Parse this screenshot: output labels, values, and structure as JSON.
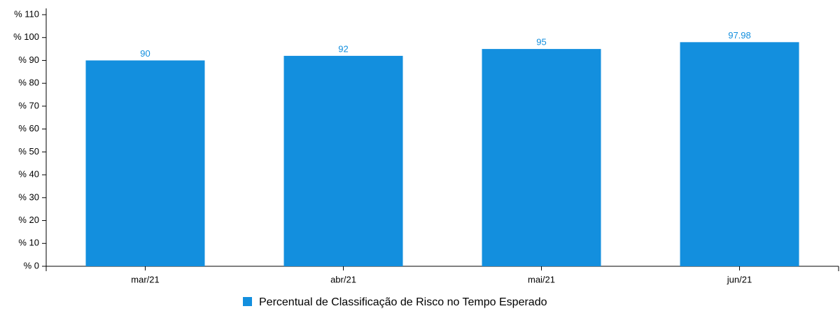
{
  "chart_data": {
    "type": "bar",
    "categories": [
      "mar/21",
      "abr/21",
      "mai/21",
      "jun/21"
    ],
    "series": [
      {
        "name": "Percentual de Classificação de Risco no Tempo Esperado",
        "color": "#138fde",
        "values": [
          90,
          92,
          95,
          97.98
        ]
      }
    ],
    "ylim": [
      0,
      110
    ],
    "yticks": [
      {
        "value": 0,
        "label": "% 0"
      },
      {
        "value": 10,
        "label": "% 10"
      },
      {
        "value": 20,
        "label": "% 20"
      },
      {
        "value": 30,
        "label": "% 30"
      },
      {
        "value": 40,
        "label": "% 40"
      },
      {
        "value": 50,
        "label": "% 50"
      },
      {
        "value": 60,
        "label": "% 60"
      },
      {
        "value": 70,
        "label": "% 70"
      },
      {
        "value": 80,
        "label": "% 80"
      },
      {
        "value": 90,
        "label": "% 90"
      },
      {
        "value": 100,
        "label": "% 100"
      },
      {
        "value": 110,
        "label": "% 110"
      }
    ],
    "grid": false,
    "legend": "bottom"
  }
}
